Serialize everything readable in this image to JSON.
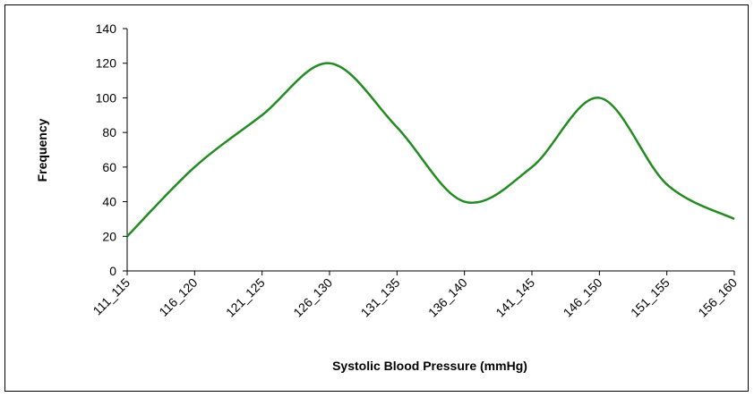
{
  "chart_data": {
    "type": "line",
    "x_label": "Systolic Blood Pressure (mmHg)",
    "y_label": "Frequency",
    "categories": [
      "111_115",
      "116_120",
      "121_125",
      "126_130",
      "131_135",
      "136_140",
      "141_145",
      "146_150",
      "151_155",
      "156_160"
    ],
    "series": [
      {
        "name": "Frequency",
        "color": "#228B22",
        "values": [
          20,
          60,
          90,
          120,
          83,
          40,
          60,
          100,
          50,
          30
        ]
      }
    ],
    "ylim": [
      0,
      140
    ],
    "yticks": [
      0,
      20,
      40,
      60,
      80,
      100,
      120,
      140
    ],
    "grid": false,
    "legend": false
  }
}
